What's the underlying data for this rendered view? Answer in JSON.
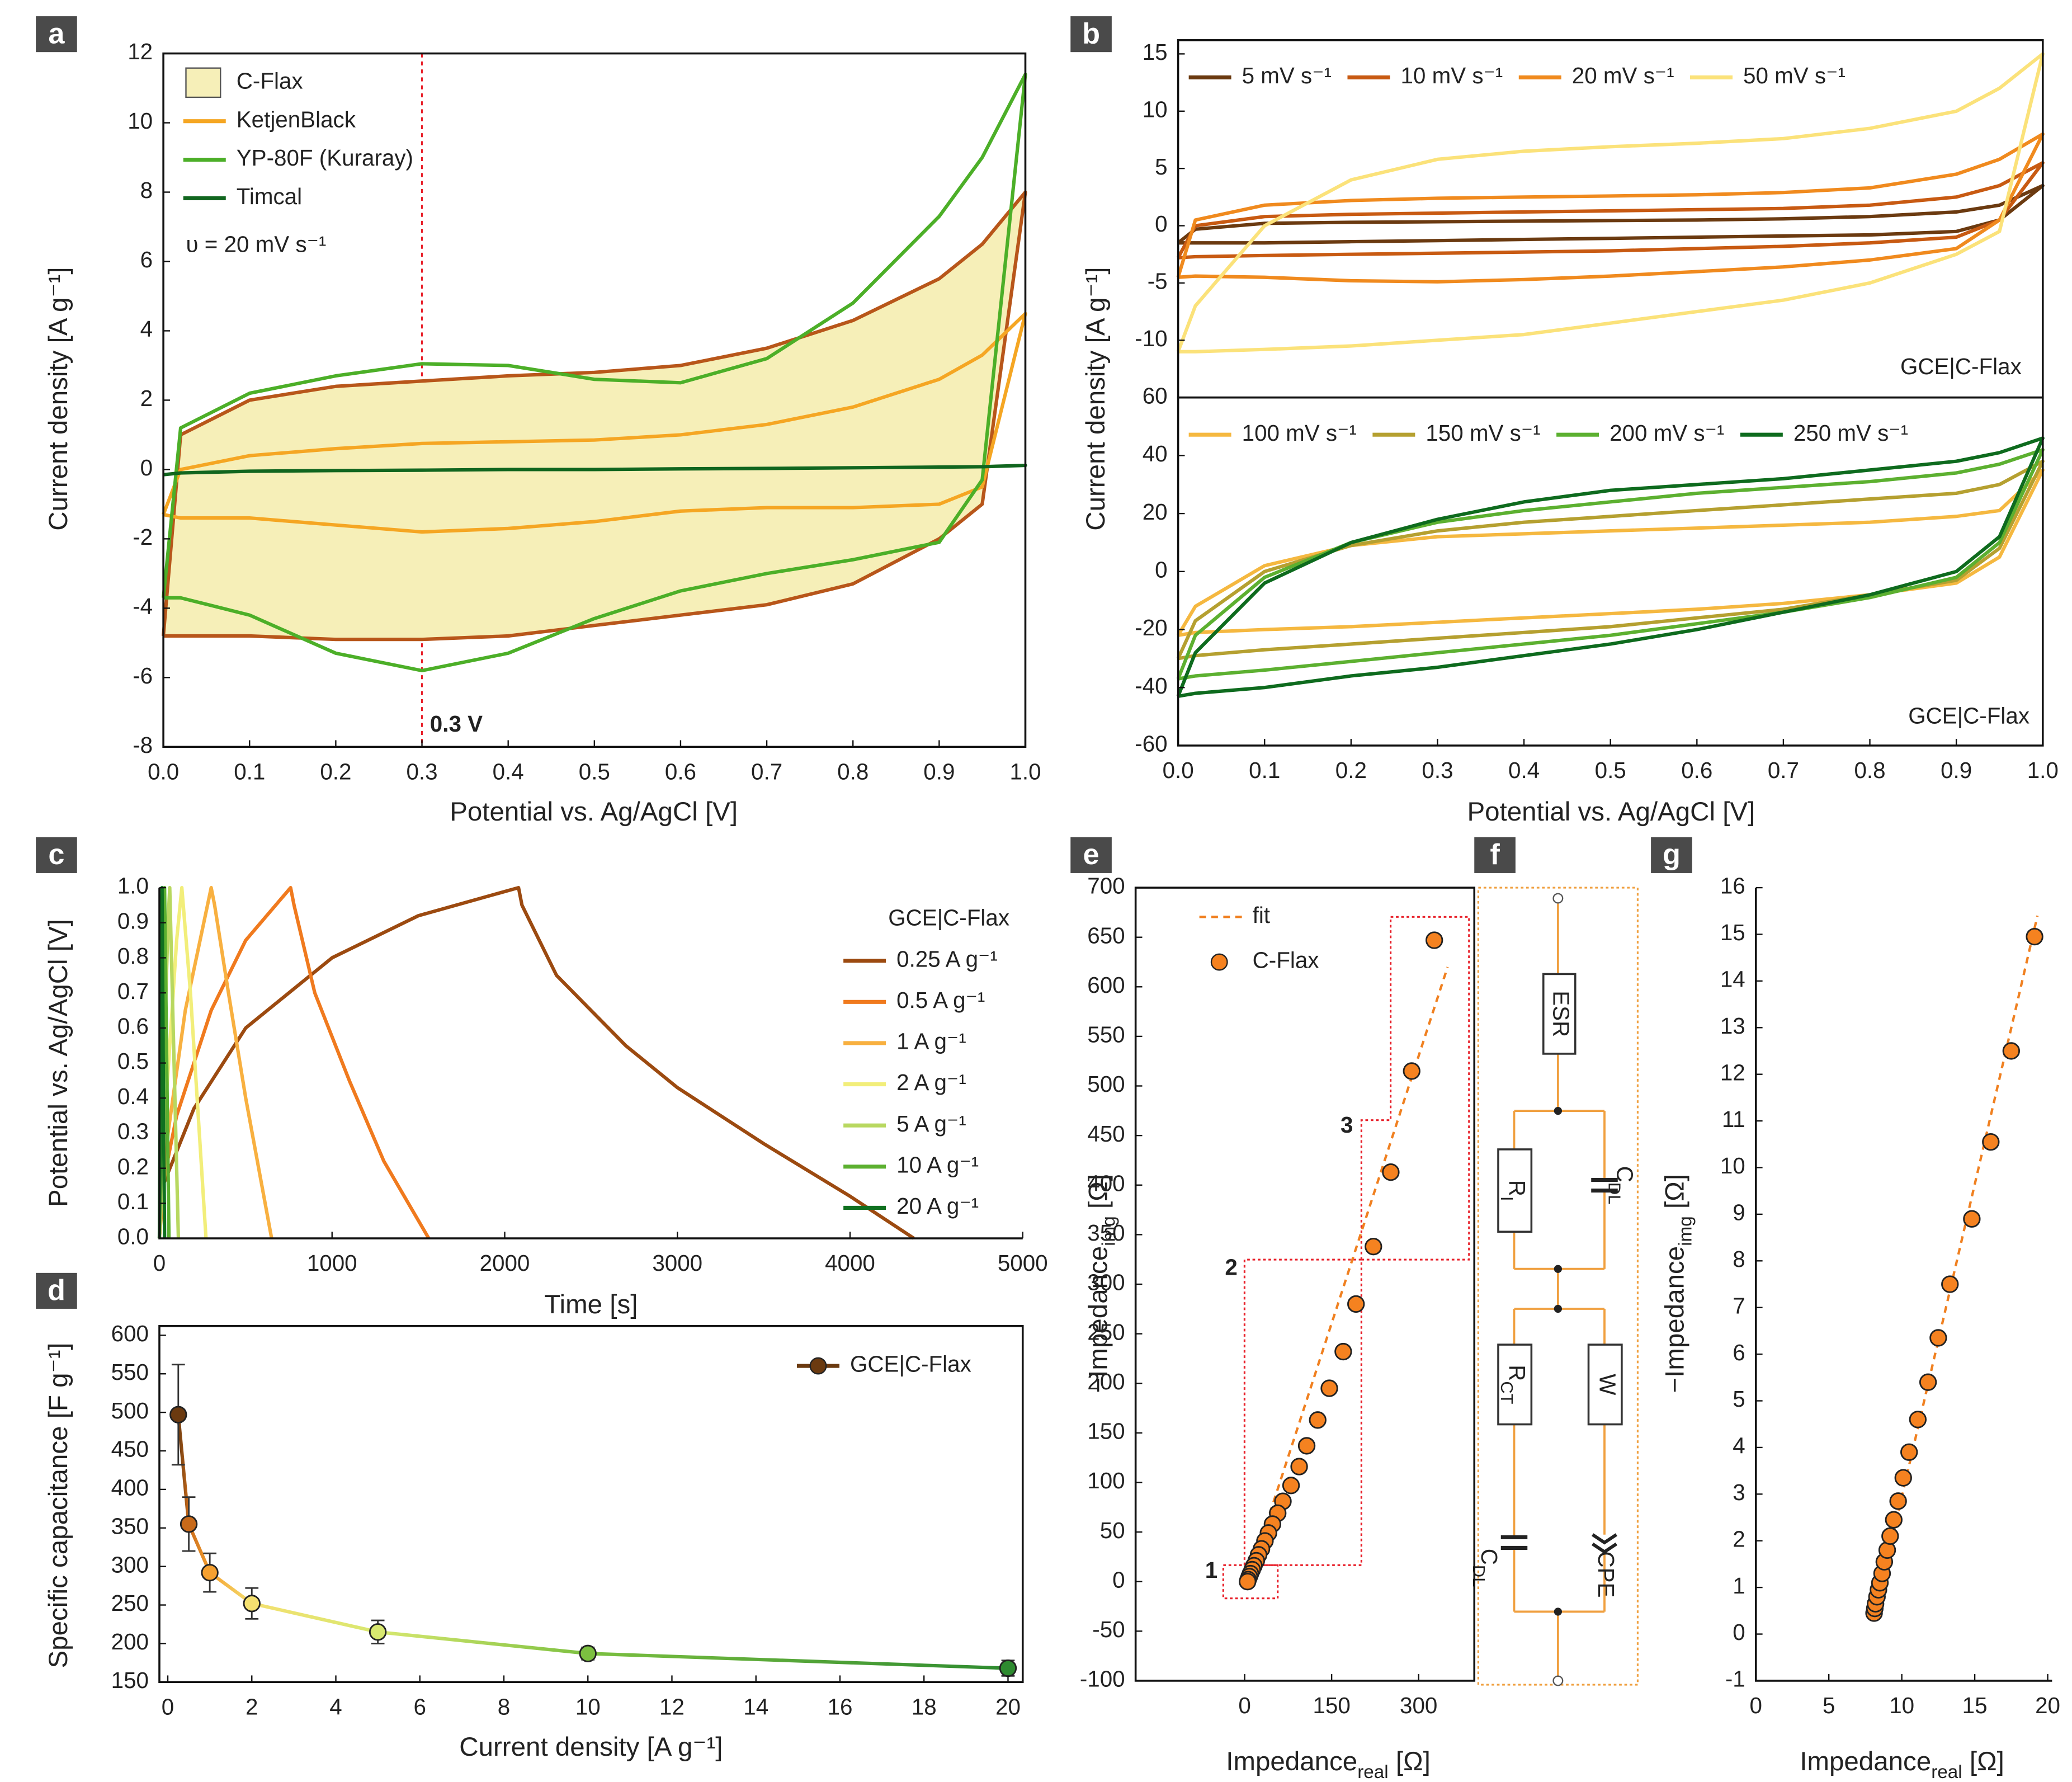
{
  "chart_data": [
    {
      "panel": "a",
      "type": "line",
      "x_label": [
        "Potential vs. Ag/AgCl [V]"
      ],
      "y_label": [
        "Current density [A g⁻¹]"
      ],
      "x": [
        0,
        0.02,
        0.1,
        0.2,
        0.3,
        0.4,
        0.5,
        0.6,
        0.7,
        0.8,
        0.9,
        0.95,
        1,
        0.95,
        0.9,
        0.8,
        0.7,
        0.6,
        0.5,
        0.4,
        0.3,
        0.2,
        0.1,
        0.02,
        0
      ],
      "xlim": [
        0,
        1
      ],
      "xticks": [
        {
          "value": 0,
          "label": "0.0"
        },
        0.1,
        0.2,
        0.3,
        0.4,
        0.5,
        0.6,
        0.7,
        0.8,
        0.9,
        {
          "value": 1,
          "label": "1.0"
        }
      ],
      "ylim": [
        -8,
        12
      ],
      "yticks": [
        -8,
        -6,
        -4,
        -2,
        0,
        2,
        4,
        6,
        8,
        10,
        12
      ],
      "legend": "upper left",
      "annotations": [
        "υ = 20 mV s⁻¹"
      ],
      "reference_line": {
        "value": 0.3,
        "label": "0.3 V",
        "color": "#e8202a"
      },
      "series": [
        {
          "name": "C-Flax",
          "color": "#b8561a",
          "fill": "#f6efb8",
          "values": [
            -4.8,
            1.0,
            2.0,
            2.4,
            2.55,
            2.7,
            2.8,
            3.0,
            3.5,
            4.3,
            5.5,
            6.5,
            8.0,
            -1.0,
            -2.0,
            -3.3,
            -3.9,
            -4.2,
            -4.5,
            -4.8,
            -4.9,
            -4.9,
            -4.8,
            -4.8,
            -4.8
          ]
        },
        {
          "name": "KetjenBlack",
          "color": "#f5a623",
          "values": [
            -1.3,
            0.0,
            0.4,
            0.6,
            0.75,
            0.8,
            0.85,
            1.0,
            1.3,
            1.8,
            2.6,
            3.3,
            4.5,
            -0.5,
            -1.0,
            -1.1,
            -1.1,
            -1.2,
            -1.5,
            -1.7,
            -1.8,
            -1.6,
            -1.4,
            -1.4,
            -1.3
          ]
        },
        {
          "name": "YP-80F (Kuraray)",
          "color": "#4caf28",
          "values": [
            -3.7,
            1.2,
            2.2,
            2.7,
            3.05,
            3.0,
            2.6,
            2.5,
            3.2,
            4.8,
            7.3,
            9.0,
            11.4,
            -0.3,
            -2.1,
            -2.6,
            -3.0,
            -3.5,
            -4.3,
            -5.3,
            -5.8,
            -5.3,
            -4.2,
            -3.7,
            -3.7
          ]
        },
        {
          "name": "Timcal",
          "color": "#11661f",
          "values": [
            -0.15,
            -0.1,
            -0.05,
            -0.03,
            -0.02,
            0,
            0,
            0.02,
            0.03,
            0.05,
            0.07,
            0.08,
            0.12,
            0.08,
            0.07,
            0.05,
            0.03,
            0.02,
            0,
            0,
            -0.02,
            -0.03,
            -0.05,
            -0.1,
            -0.15
          ]
        }
      ]
    },
    {
      "panel": "b",
      "type": "line",
      "x": [
        0,
        0.02,
        0.1,
        0.2,
        0.3,
        0.4,
        0.5,
        0.6,
        0.7,
        0.8,
        0.9,
        0.95,
        1,
        0.95,
        0.9,
        0.8,
        0.7,
        0.6,
        0.5,
        0.4,
        0.3,
        0.2,
        0.1,
        0.02,
        0
      ],
      "xlim": [
        0,
        1
      ],
      "ylim": [
        -15,
        16.2
      ],
      "yticks": [
        -10,
        -5,
        0,
        5,
        10,
        15
      ],
      "legend": "top",
      "annotations": [
        "GCE|C-Flax"
      ],
      "series": [
        {
          "name": "5 mV s⁻¹",
          "color": "#6b3a10",
          "values": [
            -1.5,
            -0.3,
            0.2,
            0.3,
            0.35,
            0.4,
            0.45,
            0.5,
            0.6,
            0.8,
            1.2,
            1.8,
            3.5,
            0.5,
            -0.5,
            -0.8,
            -0.9,
            -1.0,
            -1.1,
            -1.2,
            -1.3,
            -1.4,
            -1.5,
            -1.5,
            -1.5
          ]
        },
        {
          "name": "10 mV s⁻¹",
          "color": "#c85a12",
          "values": [
            -2.8,
            0,
            0.8,
            1.0,
            1.1,
            1.2,
            1.3,
            1.4,
            1.5,
            1.8,
            2.5,
            3.5,
            5.5,
            0.5,
            -1.0,
            -1.5,
            -1.8,
            -2.0,
            -2.2,
            -2.3,
            -2.4,
            -2.5,
            -2.6,
            -2.7,
            -2.8
          ]
        },
        {
          "name": "20 mV s⁻¹",
          "color": "#f08a1e",
          "values": [
            -4.5,
            0.5,
            1.8,
            2.2,
            2.4,
            2.5,
            2.6,
            2.7,
            2.9,
            3.3,
            4.5,
            5.8,
            8.0,
            0.5,
            -2.0,
            -3.0,
            -3.6,
            -4.0,
            -4.4,
            -4.7,
            -4.9,
            -4.8,
            -4.5,
            -4.4,
            -4.5
          ]
        },
        {
          "name": "50 mV s⁻¹",
          "color": "#fbe27a",
          "values": [
            -11,
            -7,
            0,
            4,
            5.8,
            6.5,
            6.9,
            7.2,
            7.6,
            8.5,
            10,
            12,
            15,
            -0.5,
            -2.5,
            -5,
            -6.5,
            -7.5,
            -8.5,
            -9.5,
            -10,
            -10.5,
            -10.8,
            -11,
            -11
          ]
        }
      ]
    },
    {
      "type": "line",
      "x_label": [
        "Potential vs. Ag/AgCl [V]"
      ],
      "y_label": [
        "Current density [A g⁻¹]"
      ],
      "x": [
        0,
        0.02,
        0.1,
        0.2,
        0.3,
        0.4,
        0.5,
        0.6,
        0.7,
        0.8,
        0.9,
        0.95,
        1,
        0.95,
        0.9,
        0.8,
        0.7,
        0.6,
        0.5,
        0.4,
        0.3,
        0.2,
        0.1,
        0.02,
        0
      ],
      "xlim": [
        0,
        1
      ],
      "xticks": [
        {
          "value": 0,
          "label": "0.0"
        },
        0.1,
        0.2,
        0.3,
        0.4,
        0.5,
        0.6,
        0.7,
        0.8,
        0.9,
        {
          "value": 1,
          "label": "1.0"
        }
      ],
      "ylim": [
        -60,
        60
      ],
      "yticks": [
        -60,
        -40,
        -20,
        0,
        20,
        40,
        60
      ],
      "legend": "top",
      "annotations": [
        "GCE|C-Flax"
      ],
      "series": [
        {
          "name": "100 mV s⁻¹",
          "color": "#f5b840",
          "values": [
            -22,
            -12,
            2,
            9,
            12,
            13,
            14,
            15,
            16,
            17,
            19,
            21,
            35,
            5,
            -4,
            -8,
            -11,
            -13,
            -14.5,
            -16,
            -17.5,
            -19,
            -20,
            -21,
            -22
          ]
        },
        {
          "name": "150 mV s⁻¹",
          "color": "#b5a030",
          "values": [
            -30,
            -17,
            0,
            9,
            14,
            17,
            19,
            21,
            23,
            25,
            27,
            30,
            38,
            8,
            -3,
            -8,
            -13,
            -16,
            -19,
            -21,
            -23,
            -25,
            -27,
            -29,
            -30
          ]
        },
        {
          "name": "200 mV s⁻¹",
          "color": "#5cb030",
          "values": [
            -37,
            -22,
            -2,
            10,
            17,
            21,
            24,
            27,
            29,
            31,
            34,
            37,
            42,
            10,
            -2,
            -9,
            -14,
            -18,
            -22,
            -25,
            -28,
            -31,
            -34,
            -36,
            -37
          ]
        },
        {
          "name": "250 mV s⁻¹",
          "color": "#0e6b1e",
          "values": [
            -43,
            -28,
            -4,
            10,
            18,
            24,
            28,
            30,
            32,
            35,
            38,
            41,
            46,
            12,
            0,
            -8,
            -14,
            -20,
            -25,
            -29,
            -33,
            -36,
            -40,
            -42,
            -43
          ]
        }
      ]
    },
    {
      "panel": "c",
      "type": "line",
      "x_label": [
        "Time [s]"
      ],
      "y_label": [
        "Potential vs. Ag/AgCl [V]"
      ],
      "xlim": [
        0,
        5000
      ],
      "xticks": [
        0,
        1000,
        2000,
        3000,
        4000,
        5000
      ],
      "ylim": [
        0,
        1
      ],
      "yticks": [
        {
          "value": 0,
          "label": "0.0"
        },
        0.1,
        0.2,
        0.3,
        0.4,
        0.5,
        0.6,
        0.7,
        0.8,
        0.9,
        {
          "value": 1,
          "label": "1.0"
        }
      ],
      "legend": "right",
      "legend_title": "GCE|C-Flax",
      "series": [
        {
          "name": "0.25 A g⁻¹",
          "color": "#9c4a10",
          "x": [
            0,
            20,
            200,
            500,
            1000,
            1500,
            2080,
            2100,
            2300,
            2700,
            3000,
            3500,
            4000,
            4370
          ],
          "values": [
            0,
            0.15,
            0.37,
            0.6,
            0.8,
            0.92,
            1.0,
            0.95,
            0.75,
            0.55,
            0.43,
            0.27,
            0.12,
            0
          ]
        },
        {
          "name": "0.5 A g⁻¹",
          "color": "#f07a1e",
          "x": [
            0,
            10,
            100,
            300,
            500,
            760,
            780,
            900,
            1100,
            1300,
            1560
          ],
          "values": [
            0,
            0.13,
            0.35,
            0.65,
            0.85,
            1.0,
            0.95,
            0.7,
            0.45,
            0.22,
            0
          ]
        },
        {
          "name": "1 A g⁻¹",
          "color": "#f8b040",
          "x": [
            0,
            50,
            150,
            300,
            320,
            400,
            500,
            650
          ],
          "values": [
            0,
            0.3,
            0.65,
            1.0,
            0.95,
            0.7,
            0.4,
            0
          ]
        },
        {
          "name": "2 A g⁻¹",
          "color": "#f2ee7a",
          "x": [
            0,
            40,
            100,
            130,
            180,
            270
          ],
          "values": [
            0,
            0.4,
            0.85,
            1.0,
            0.7,
            0
          ]
        },
        {
          "name": "5 A g⁻¹",
          "color": "#b8d860",
          "x": [
            0,
            20,
            50,
            60,
            80,
            110
          ],
          "values": [
            0,
            0.4,
            0.9,
            1,
            0.6,
            0
          ]
        },
        {
          "name": "10 A g⁻¹",
          "color": "#5cb030",
          "x": [
            0,
            15,
            30,
            40,
            55
          ],
          "values": [
            0,
            0.5,
            1,
            0.6,
            0
          ]
        },
        {
          "name": "20 A g⁻¹",
          "color": "#107020",
          "x": [
            0,
            8,
            15,
            22,
            30
          ],
          "values": [
            0,
            0.6,
            1,
            0.5,
            0
          ]
        }
      ]
    },
    {
      "panel": "d",
      "type": "line",
      "x_label": [
        "Current density [A g⁻¹]"
      ],
      "y_label": [
        "Specific capacitance [F g⁻¹]"
      ],
      "xlim": [
        -0.2,
        20.35
      ],
      "xticks": [
        0,
        2,
        4,
        6,
        8,
        10,
        12,
        14,
        16,
        18,
        20
      ],
      "ylim": [
        150,
        612
      ],
      "yticks": [
        150,
        200,
        250,
        300,
        350,
        400,
        450,
        500,
        550,
        600
      ],
      "legend": "upper right",
      "series": [
        {
          "name": "GCE|C-Flax",
          "color": "#6b3a10",
          "marker": true,
          "gradient": true,
          "x": [
            0.25,
            0.5,
            1,
            2,
            5,
            10,
            20
          ],
          "values": [
            497,
            355,
            292,
            252,
            215,
            187,
            168
          ],
          "errors": [
            65,
            35,
            25,
            20,
            15,
            8,
            10
          ],
          "point_colors": [
            "#6b3a10",
            "#c86a1a",
            "#f5a030",
            "#f4e070",
            "#d8e870",
            "#7cc040",
            "#2e8b30"
          ]
        }
      ]
    },
    {
      "panel": "e",
      "type": "scatter",
      "x_label": [
        "Impedance",
        "real",
        " [Ω]"
      ],
      "y_label": [
        "−Impedance",
        "img",
        " [Ω]"
      ],
      "xlim": [
        -188,
        396
      ],
      "xticks": [
        0,
        150,
        300
      ],
      "ylim": [
        -100,
        700
      ],
      "yticks": [
        -100,
        -50,
        0,
        50,
        100,
        150,
        200,
        250,
        300,
        350,
        400,
        450,
        500,
        550,
        600,
        650,
        700
      ],
      "legend": "upper left",
      "annotations": [
        "1",
        "2",
        "3"
      ],
      "series": [
        {
          "name": "fit",
          "color": "#f08020",
          "dash": true,
          "x": [
            5,
            350
          ],
          "values": [
            0,
            620
          ]
        },
        {
          "name": "C-Flax",
          "color": "#f58220",
          "marker": true,
          "line": false,
          "x": [
            327,
            288,
            252,
            222,
            192,
            170,
            146,
            126,
            107,
            94,
            80,
            66,
            57,
            48,
            41,
            35,
            29,
            24,
            20,
            16,
            13,
            10,
            8,
            6,
            5
          ],
          "values": [
            647,
            515,
            413,
            338,
            280,
            232,
            195,
            163,
            137,
            116,
            97,
            81,
            69,
            58,
            49,
            41,
            33,
            27,
            21,
            16,
            12,
            8,
            5,
            2,
            0
          ]
        }
      ]
    },
    {
      "panel": "g",
      "type": "scatter",
      "x_label": [
        "Impedance",
        "real",
        " [Ω]"
      ],
      "y_label": [
        "−Impedance",
        "img",
        " [Ω]"
      ],
      "xlim": [
        0,
        20.3
      ],
      "xticks": [
        0,
        5,
        10,
        15,
        20
      ],
      "ylim": [
        -1,
        16
      ],
      "yticks": [
        -1,
        0,
        1,
        2,
        3,
        4,
        5,
        6,
        7,
        8,
        9,
        10,
        11,
        12,
        13,
        14,
        15,
        16
      ],
      "series": [
        {
          "name": "fit",
          "color": "#f08020",
          "dash": true,
          "x": [
            8.1,
            19.3
          ],
          "values": [
            0.4,
            15.4
          ]
        },
        {
          "name": "C-Flax",
          "color": "#f58220",
          "marker": true,
          "line": false,
          "x": [
            8.1,
            8.15,
            8.2,
            8.3,
            8.4,
            8.5,
            8.65,
            8.8,
            9,
            9.2,
            9.45,
            9.75,
            10.1,
            10.5,
            11.1,
            11.8,
            12.5,
            13.3,
            14.8,
            16.1,
            17.5,
            19.1
          ],
          "values": [
            0.45,
            0.55,
            0.65,
            0.8,
            0.95,
            1.1,
            1.3,
            1.55,
            1.8,
            2.1,
            2.45,
            2.85,
            3.35,
            3.9,
            4.6,
            5.4,
            6.35,
            7.5,
            8.9,
            10.55,
            12.5,
            14.95
          ]
        }
      ]
    }
  ],
  "circuit": {
    "panel": "f",
    "elements": [
      {
        "text": "ESR"
      },
      {
        "text": "R",
        "sub": "I"
      },
      {
        "text": "C",
        "sub": "DL"
      },
      {
        "text": "R",
        "sub": "CT"
      },
      {
        "text": "W"
      },
      {
        "text": "C",
        "sub": "DL"
      },
      {
        "text": "CPE"
      }
    ]
  }
}
